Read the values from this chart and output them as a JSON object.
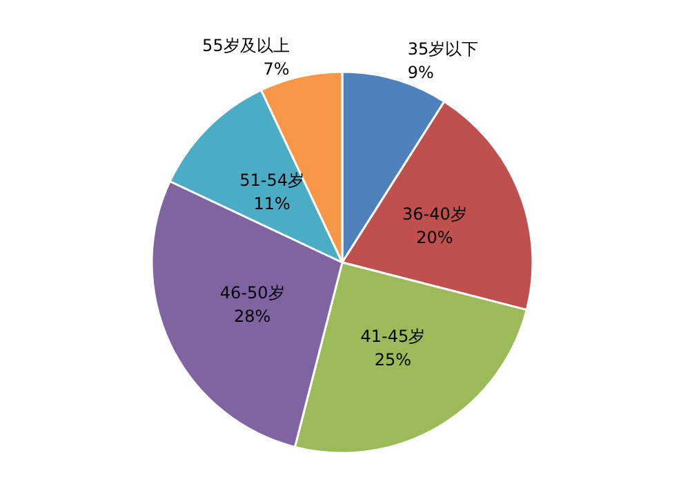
{
  "chart_data": {
    "type": "pie",
    "categories": [
      "35岁以下",
      "36-40岁",
      "41-45岁",
      "46-50岁",
      "51-54岁",
      "55岁及以上"
    ],
    "values": [
      9,
      20,
      25,
      28,
      11,
      7
    ],
    "value_labels": [
      "9%",
      "20%",
      "25%",
      "28%",
      "11%",
      "7%"
    ],
    "colors": [
      "#4f81bd",
      "#c0504d",
      "#9bbb59",
      "#8064a2",
      "#4bacc6",
      "#f79646"
    ],
    "legend": false
  }
}
